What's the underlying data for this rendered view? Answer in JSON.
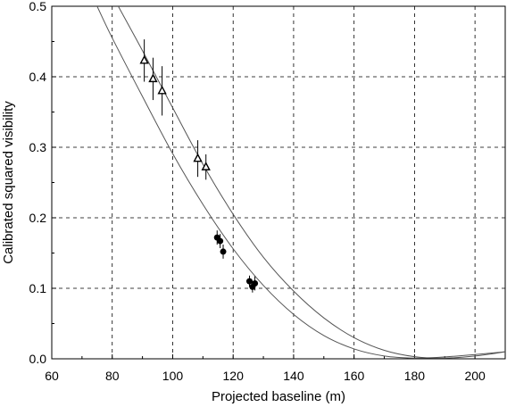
{
  "chart_data": {
    "type": "scatter",
    "title": "",
    "xlabel": "Projected baseline (m)",
    "ylabel": "Calibrated squared visibility",
    "xlim": [
      60,
      210
    ],
    "ylim": [
      0,
      0.5
    ],
    "x_ticks": [
      60,
      80,
      100,
      120,
      140,
      160,
      180,
      200
    ],
    "y_ticks": [
      0.0,
      0.1,
      0.2,
      0.3,
      0.4,
      0.5
    ],
    "x_tick_labels": [
      "60",
      "80",
      "100",
      "120",
      "140",
      "160",
      "180",
      "200"
    ],
    "y_tick_labels": [
      "0.0",
      "0.1",
      "0.2",
      "0.3",
      "0.4",
      "0.5"
    ],
    "grid": true,
    "legend": "none",
    "series": [
      {
        "marker": "triangle",
        "points": [
          {
            "x": 90.6,
            "y": 0.423,
            "err": 0.03
          },
          {
            "x": 93.5,
            "y": 0.397,
            "err": 0.03
          },
          {
            "x": 96.5,
            "y": 0.38,
            "err": 0.035
          },
          {
            "x": 108.3,
            "y": 0.284,
            "err": 0.026
          },
          {
            "x": 111.0,
            "y": 0.272,
            "err": 0.018
          }
        ]
      },
      {
        "marker": "circle",
        "points": [
          {
            "x": 114.7,
            "y": 0.172,
            "err": 0.01
          },
          {
            "x": 115.7,
            "y": 0.167,
            "err": 0.01
          },
          {
            "x": 116.7,
            "y": 0.152,
            "err": 0.01
          },
          {
            "x": 125.4,
            "y": 0.11,
            "err": 0.008
          },
          {
            "x": 126.4,
            "y": 0.102,
            "err": 0.008
          },
          {
            "x": 127.2,
            "y": 0.107,
            "err": 0.01
          }
        ]
      }
    ],
    "curves": [
      {
        "name": "",
        "points": [
          [
            82,
            0.5
          ],
          [
            90,
            0.437
          ],
          [
            100,
            0.356
          ],
          [
            110,
            0.276
          ],
          [
            120,
            0.205
          ],
          [
            130,
            0.144
          ],
          [
            140,
            0.096
          ],
          [
            150,
            0.058
          ],
          [
            160,
            0.03
          ],
          [
            170,
            0.012
          ],
          [
            180,
            0.003
          ],
          [
            190,
            0.001
          ],
          [
            200,
            0.004
          ],
          [
            210,
            0.01
          ]
        ]
      },
      {
        "name": "",
        "points": [
          [
            75,
            0.5
          ],
          [
            80,
            0.455
          ],
          [
            90,
            0.372
          ],
          [
            100,
            0.291
          ],
          [
            110,
            0.219
          ],
          [
            120,
            0.156
          ],
          [
            130,
            0.104
          ],
          [
            140,
            0.063
          ],
          [
            150,
            0.033
          ],
          [
            160,
            0.014
          ],
          [
            170,
            0.004
          ],
          [
            180,
            0.001
          ],
          [
            188,
            0.002
          ],
          [
            200,
            0.006
          ],
          [
            210,
            0.01
          ]
        ]
      }
    ]
  }
}
